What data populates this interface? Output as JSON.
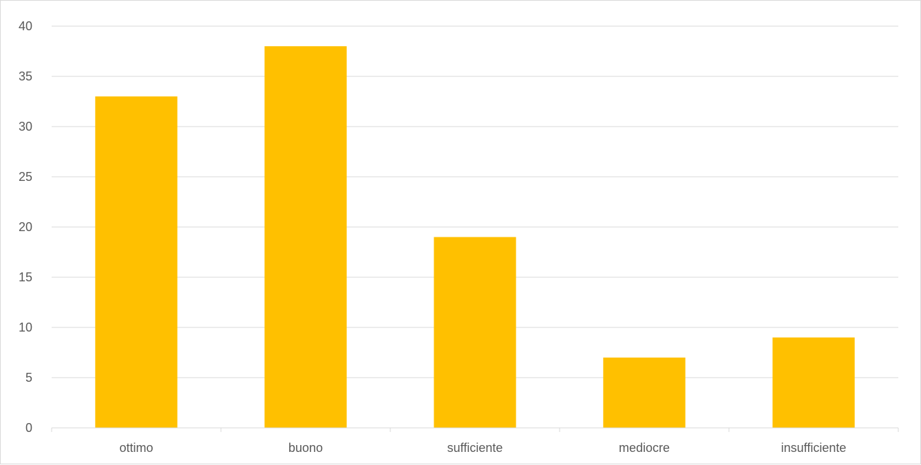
{
  "chart_data": {
    "type": "bar",
    "categories": [
      "ottimo",
      "buono",
      "sufficiente",
      "mediocre",
      "insufficiente"
    ],
    "values": [
      33,
      38,
      19,
      7,
      9
    ],
    "ylim": [
      0,
      40
    ],
    "yticks": [
      0,
      5,
      10,
      15,
      20,
      25,
      30,
      35,
      40
    ],
    "grid": true,
    "legend": "none",
    "bar_color": "#FFC000",
    "grid_color": "#d9d9d9",
    "label_color": "#595959"
  }
}
